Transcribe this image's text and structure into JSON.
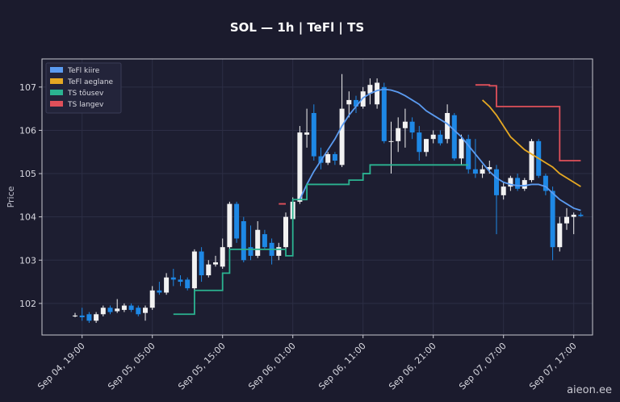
{
  "chart_data": {
    "type": "candlestick",
    "title": "SOL — 1h  |  TeFl  |  TS",
    "ylabel": "Price",
    "watermark": "aieon.ee",
    "categories": [
      "Sep 04, 18:00",
      "Sep 04, 19:00",
      "Sep 04, 20:00",
      "Sep 04, 21:00",
      "Sep 04, 22:00",
      "Sep 04, 23:00",
      "Sep 05, 00:00",
      "Sep 05, 01:00",
      "Sep 05, 02:00",
      "Sep 05, 03:00",
      "Sep 05, 04:00",
      "Sep 05, 05:00",
      "Sep 05, 06:00",
      "Sep 05, 07:00",
      "Sep 05, 08:00",
      "Sep 05, 09:00",
      "Sep 05, 10:00",
      "Sep 05, 11:00",
      "Sep 05, 12:00",
      "Sep 05, 13:00",
      "Sep 05, 14:00",
      "Sep 05, 15:00",
      "Sep 05, 16:00",
      "Sep 05, 17:00",
      "Sep 05, 18:00",
      "Sep 05, 19:00",
      "Sep 05, 20:00",
      "Sep 05, 21:00",
      "Sep 05, 22:00",
      "Sep 05, 23:00",
      "Sep 06, 00:00",
      "Sep 06, 01:00",
      "Sep 06, 02:00",
      "Sep 06, 03:00",
      "Sep 06, 04:00",
      "Sep 06, 05:00",
      "Sep 06, 06:00",
      "Sep 06, 07:00",
      "Sep 06, 08:00",
      "Sep 06, 09:00",
      "Sep 06, 10:00",
      "Sep 06, 11:00",
      "Sep 06, 12:00",
      "Sep 06, 13:00",
      "Sep 06, 14:00",
      "Sep 06, 15:00",
      "Sep 06, 16:00",
      "Sep 06, 17:00",
      "Sep 06, 18:00",
      "Sep 06, 19:00",
      "Sep 06, 20:00",
      "Sep 06, 21:00",
      "Sep 06, 22:00",
      "Sep 06, 23:00",
      "Sep 07, 00:00",
      "Sep 07, 01:00",
      "Sep 07, 02:00",
      "Sep 07, 03:00",
      "Sep 07, 04:00",
      "Sep 07, 05:00",
      "Sep 07, 06:00",
      "Sep 07, 07:00",
      "Sep 07, 08:00",
      "Sep 07, 09:00",
      "Sep 07, 10:00",
      "Sep 07, 11:00",
      "Sep 07, 12:00",
      "Sep 07, 13:00",
      "Sep 07, 14:00",
      "Sep 07, 15:00",
      "Sep 07, 16:00",
      "Sep 07, 17:00",
      "Sep 07, 18:00"
    ],
    "open": [
      101.7,
      101.72,
      101.75,
      101.6,
      101.75,
      101.9,
      101.82,
      101.85,
      101.95,
      101.9,
      101.78,
      101.9,
      102.3,
      102.25,
      102.6,
      102.55,
      102.55,
      102.35,
      103.2,
      102.65,
      102.9,
      102.85,
      103.3,
      104.3,
      103.9,
      103.3,
      103.1,
      103.6,
      103.4,
      103.1,
      103.3,
      103.95,
      104.35,
      105.9,
      106.4,
      105.4,
      105.25,
      105.45,
      105.2,
      106.6,
      106.7,
      106.55,
      106.85,
      106.6,
      107.0,
      105.75,
      105.75,
      106.05,
      106.2,
      105.95,
      105.5,
      105.8,
      105.9,
      105.8,
      106.35,
      105.35,
      105.8,
      105.1,
      105.0,
      105.1,
      105.1,
      104.5,
      104.7,
      104.9,
      104.65,
      104.85,
      105.75,
      104.95,
      104.6,
      103.3,
      103.85,
      104.0,
      104.05
    ],
    "high": [
      101.78,
      101.9,
      101.8,
      101.8,
      101.95,
      101.95,
      102.1,
      102.0,
      102.0,
      101.95,
      101.95,
      102.4,
      102.5,
      102.7,
      102.8,
      102.65,
      102.6,
      103.25,
      103.3,
      103.0,
      103.1,
      103.5,
      104.35,
      104.35,
      104.0,
      103.8,
      103.9,
      103.7,
      103.5,
      103.4,
      104.1,
      104.45,
      106.1,
      106.5,
      106.6,
      105.6,
      105.5,
      105.5,
      107.3,
      106.9,
      106.8,
      107.0,
      107.2,
      107.2,
      107.1,
      106.2,
      106.3,
      106.5,
      106.3,
      106.1,
      105.8,
      106.0,
      106.0,
      106.6,
      106.4,
      105.9,
      105.9,
      105.8,
      105.2,
      105.3,
      105.2,
      104.8,
      104.95,
      105.0,
      104.9,
      105.8,
      105.8,
      105.0,
      104.7,
      104.0,
      104.2,
      104.1,
      104.1
    ],
    "low": [
      101.68,
      101.6,
      101.55,
      101.55,
      101.7,
      101.75,
      101.78,
      101.8,
      101.8,
      101.7,
      101.6,
      101.85,
      102.2,
      102.2,
      102.4,
      102.4,
      102.3,
      102.3,
      102.5,
      102.6,
      102.85,
      102.8,
      103.2,
      103.4,
      102.95,
      103.0,
      103.05,
      103.25,
      102.9,
      103.0,
      103.2,
      103.85,
      104.3,
      105.6,
      105.3,
      105.1,
      105.2,
      105.2,
      105.15,
      106.3,
      106.4,
      106.5,
      106.6,
      106.5,
      105.7,
      105.0,
      105.5,
      105.6,
      105.8,
      105.3,
      105.4,
      105.7,
      105.65,
      105.7,
      105.3,
      105.2,
      105.0,
      104.9,
      104.9,
      105.0,
      103.6,
      104.4,
      104.6,
      104.6,
      104.6,
      104.8,
      104.9,
      104.5,
      103.0,
      103.2,
      103.7,
      103.6,
      104.0
    ],
    "close": [
      101.72,
      101.68,
      101.6,
      101.75,
      101.9,
      101.8,
      101.88,
      101.95,
      101.85,
      101.75,
      101.9,
      102.3,
      102.25,
      102.6,
      102.55,
      102.5,
      102.35,
      103.2,
      102.65,
      102.9,
      102.95,
      103.3,
      104.3,
      103.5,
      103.0,
      103.1,
      103.7,
      103.3,
      103.1,
      103.3,
      104.0,
      104.35,
      105.95,
      105.95,
      105.4,
      105.25,
      105.45,
      105.3,
      106.5,
      106.7,
      106.55,
      106.9,
      107.05,
      107.1,
      105.75,
      105.75,
      106.05,
      106.2,
      105.95,
      105.5,
      105.8,
      105.9,
      105.7,
      106.4,
      105.35,
      105.8,
      105.1,
      105.0,
      105.1,
      105.15,
      104.5,
      104.7,
      104.9,
      104.65,
      104.85,
      105.75,
      104.95,
      104.6,
      103.3,
      103.85,
      104.0,
      104.05,
      104.02
    ],
    "up_color": "#f2f2f2",
    "down_color": "#1e88e5",
    "series": [
      {
        "name": "TeFl kiire",
        "color": "#5b9bf0",
        "drawstyle": "line",
        "values": [
          null,
          null,
          null,
          null,
          null,
          null,
          null,
          null,
          null,
          null,
          null,
          null,
          null,
          null,
          null,
          null,
          null,
          null,
          null,
          null,
          null,
          null,
          null,
          null,
          null,
          null,
          null,
          null,
          null,
          null,
          null,
          null,
          104.4,
          104.75,
          105.05,
          105.3,
          105.55,
          105.8,
          106.1,
          106.35,
          106.55,
          106.75,
          106.85,
          106.92,
          106.95,
          106.93,
          106.88,
          106.8,
          106.7,
          106.6,
          106.45,
          106.35,
          106.25,
          106.15,
          106.0,
          105.85,
          105.65,
          105.45,
          105.25,
          105.05,
          104.9,
          104.8,
          104.75,
          104.72,
          104.72,
          104.75,
          104.75,
          104.7,
          104.55,
          104.4,
          104.3,
          104.2,
          104.15
        ]
      },
      {
        "name": "TeFl aeglane",
        "color": "#e5a823",
        "drawstyle": "line",
        "values": [
          null,
          null,
          null,
          null,
          null,
          null,
          null,
          null,
          null,
          null,
          null,
          null,
          null,
          null,
          null,
          null,
          null,
          null,
          null,
          null,
          null,
          null,
          null,
          null,
          null,
          null,
          null,
          null,
          null,
          null,
          null,
          null,
          null,
          null,
          null,
          null,
          null,
          null,
          null,
          null,
          null,
          null,
          null,
          null,
          null,
          null,
          null,
          null,
          null,
          null,
          null,
          null,
          null,
          null,
          null,
          null,
          null,
          null,
          106.7,
          106.55,
          106.35,
          106.1,
          105.85,
          105.7,
          105.55,
          105.45,
          105.35,
          105.25,
          105.15,
          105.0,
          104.9,
          104.8,
          104.7
        ]
      },
      {
        "name": "TS tõusev",
        "color": "#2bb391",
        "drawstyle": "steps",
        "values": [
          null,
          null,
          null,
          null,
          null,
          null,
          null,
          null,
          null,
          null,
          null,
          null,
          null,
          null,
          101.75,
          101.75,
          101.75,
          102.3,
          102.3,
          102.3,
          102.3,
          102.7,
          103.25,
          103.25,
          103.25,
          103.25,
          103.25,
          103.25,
          103.25,
          103.25,
          103.1,
          104.4,
          104.4,
          104.75,
          104.75,
          104.75,
          104.75,
          104.75,
          104.75,
          104.85,
          104.85,
          105.0,
          105.2,
          105.2,
          105.2,
          105.2,
          105.2,
          105.2,
          105.2,
          105.2,
          105.2,
          105.2,
          105.2,
          105.2,
          105.2,
          105.2,
          105.2,
          null,
          null,
          null,
          null,
          null,
          null,
          null,
          null,
          null,
          null,
          null,
          null,
          null,
          null,
          null,
          null
        ]
      },
      {
        "name": "TS langev",
        "color": "#e0505a",
        "drawstyle": "steps",
        "values": [
          null,
          null,
          null,
          null,
          null,
          null,
          null,
          null,
          null,
          null,
          null,
          null,
          null,
          null,
          null,
          null,
          null,
          null,
          null,
          null,
          null,
          null,
          null,
          null,
          null,
          null,
          null,
          null,
          null,
          104.3,
          104.3,
          null,
          null,
          null,
          null,
          null,
          null,
          null,
          null,
          null,
          null,
          null,
          null,
          null,
          null,
          null,
          null,
          null,
          null,
          null,
          null,
          null,
          null,
          null,
          null,
          null,
          null,
          107.05,
          107.05,
          107.03,
          106.55,
          106.55,
          106.55,
          106.55,
          106.55,
          106.55,
          106.55,
          106.55,
          106.55,
          105.3,
          105.3,
          105.3,
          105.3
        ]
      }
    ],
    "ylim": [
      101.27,
      107.65
    ],
    "yticks": [
      102,
      103,
      104,
      105,
      106,
      107
    ],
    "xticks": [
      "Sep 04, 19:00",
      "Sep 05, 05:00",
      "Sep 05, 15:00",
      "Sep 06, 01:00",
      "Sep 06, 11:00",
      "Sep 06, 21:00",
      "Sep 07, 07:00",
      "Sep 07, 17:00"
    ],
    "grid": true,
    "legend": "upper left"
  }
}
